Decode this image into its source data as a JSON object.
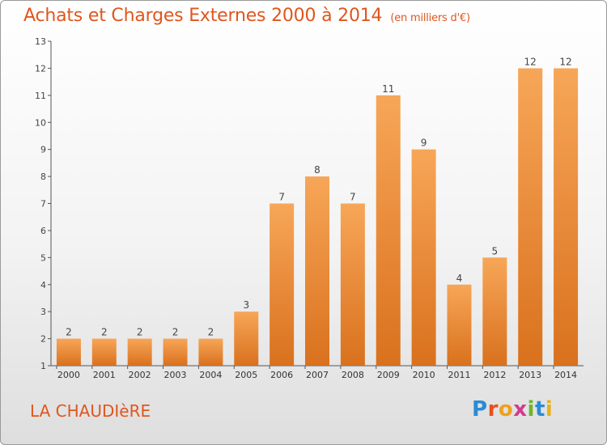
{
  "title": "Achats et Charges Externes 2000 à 2014",
  "subtitle": "(en milliers d'€)",
  "place": "LA CHAUDIèRE",
  "logo": {
    "letters": [
      "P",
      "r",
      "o",
      "x",
      "i",
      "t",
      "i"
    ],
    "colors": [
      "#2a8bd6",
      "#e8501e",
      "#f0a020",
      "#d23a8c",
      "#6bb52b",
      "#2a8bd6",
      "#e8b21c"
    ]
  },
  "colors": {
    "accent": "#e0561e",
    "bar_top": "#f7a658",
    "bar_bottom": "#d9711d"
  },
  "chart_data": {
    "type": "bar",
    "categories": [
      "2000",
      "2001",
      "2002",
      "2003",
      "2004",
      "2005",
      "2006",
      "2007",
      "2008",
      "2009",
      "2010",
      "2011",
      "2012",
      "2013",
      "2014"
    ],
    "values": [
      2,
      2,
      2,
      2,
      2,
      3,
      7,
      8,
      7,
      11,
      9,
      4,
      5,
      12,
      12
    ],
    "ylim": [
      1,
      13
    ],
    "yticks": [
      1,
      2,
      3,
      4,
      5,
      6,
      7,
      8,
      9,
      10,
      11,
      12,
      13
    ],
    "grid": false,
    "legend": "none"
  }
}
